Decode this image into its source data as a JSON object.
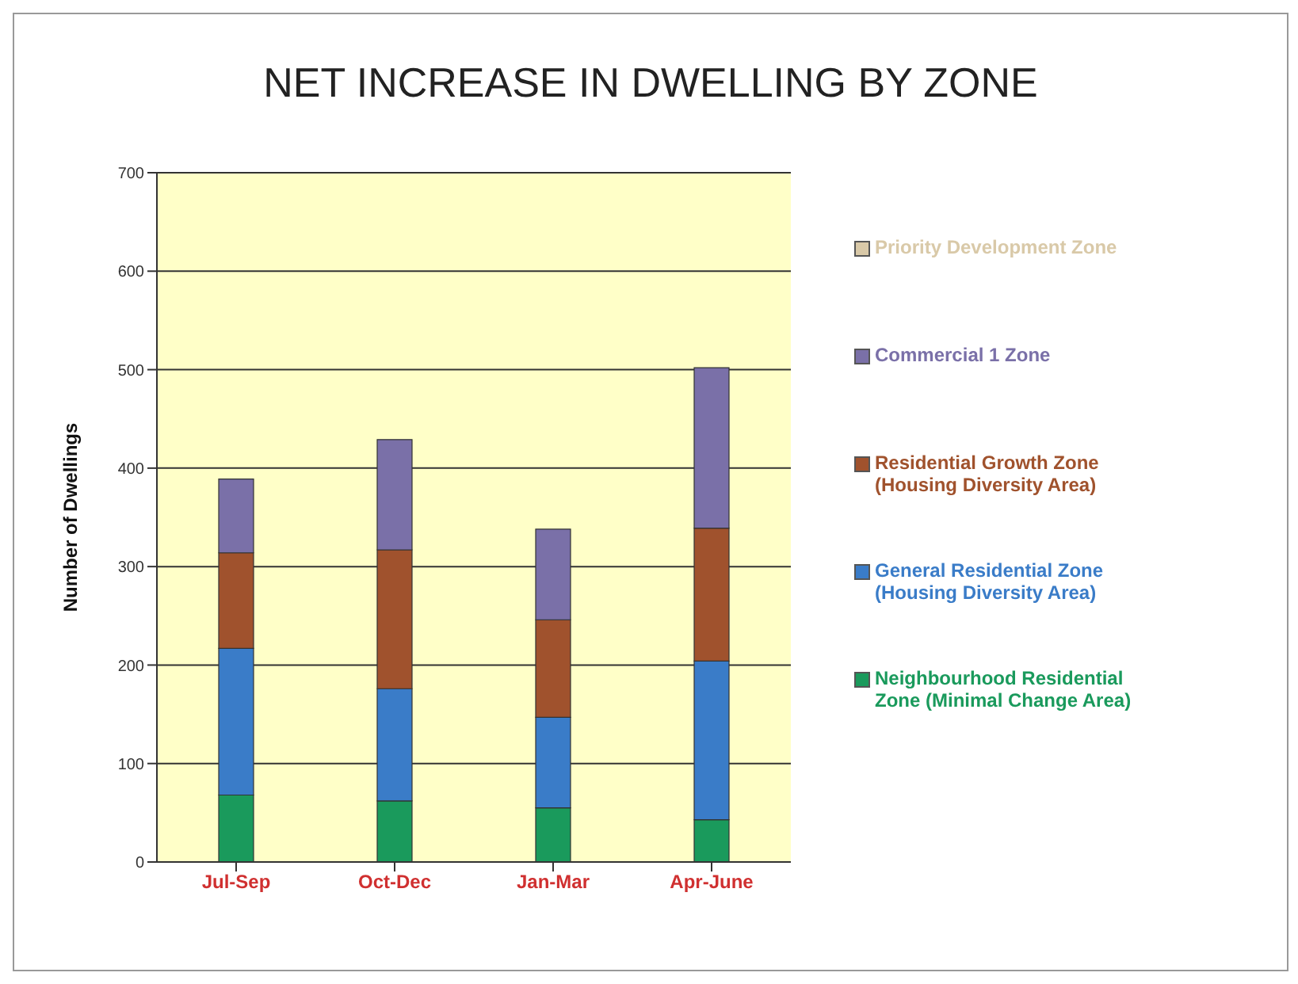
{
  "chart_data": {
    "type": "bar",
    "title": "NET INCREASE IN DWELLING BY ZONE",
    "ylabel": "Number of Dwellings",
    "categories": [
      "Jul-Sep",
      "Oct-Dec",
      "Jan-Mar",
      "Apr-June"
    ],
    "stacked": true,
    "ylim": [
      0,
      700
    ],
    "yticks": [
      0,
      100,
      200,
      300,
      400,
      500,
      600,
      700
    ],
    "grid": "y",
    "legend": "right",
    "series": [
      {
        "name": "Neighbourhood Residential Zone (Minimal Change Area)",
        "color": "#1a9a5c",
        "values": [
          68,
          62,
          55,
          43
        ]
      },
      {
        "name": "General Residential Zone (Housing Diversity Area)",
        "color": "#3a7cc8",
        "values": [
          149,
          114,
          92,
          161
        ]
      },
      {
        "name": "Residential Growth Zone (Housing Diversity Area)",
        "color": "#a0522d",
        "values": [
          97,
          141,
          99,
          135
        ]
      },
      {
        "name": "Commercial 1 Zone",
        "color": "#7a70a8",
        "values": [
          75,
          112,
          92,
          163
        ]
      },
      {
        "name": "Priority Development Zone",
        "color": "#d9c9a8",
        "values": [
          0,
          0,
          0,
          0
        ]
      }
    ]
  }
}
